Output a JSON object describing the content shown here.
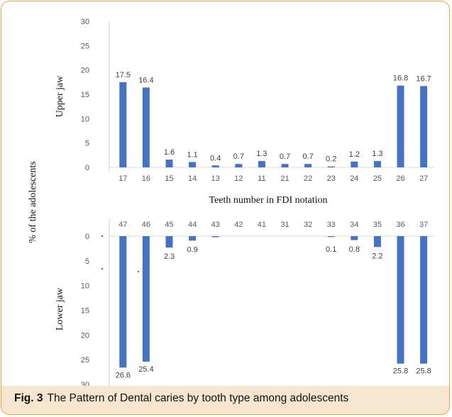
{
  "figure": {
    "label": "Fig. 3",
    "caption": "The Pattern of Dental caries by tooth type among adolescents"
  },
  "chart_data": [
    {
      "type": "bar",
      "title": "",
      "ylabel": "Upper jaw",
      "xlabel": "Teeth number in FDI notation",
      "shared_ylabel": "% of the adolescents",
      "categories": [
        "17",
        "16",
        "15",
        "14",
        "13",
        "12",
        "11",
        "21",
        "22",
        "23",
        "24",
        "25",
        "26",
        "27"
      ],
      "values": [
        17.5,
        16.4,
        1.6,
        1.1,
        0.4,
        0.7,
        1.3,
        0.7,
        0.7,
        0.2,
        1.2,
        1.3,
        16.8,
        16.7
      ],
      "yticks": [
        "0",
        "5",
        "10",
        "15",
        "20",
        "25",
        "30"
      ],
      "ylim": [
        0,
        30
      ],
      "grid": false,
      "color": "#4472c4"
    },
    {
      "type": "bar",
      "title": "",
      "ylabel": "Lower jaw",
      "orientation": "inverted-y",
      "categories": [
        "47",
        "46",
        "45",
        "44",
        "43",
        "42",
        "41",
        "31",
        "32",
        "33",
        "34",
        "35",
        "36",
        "37"
      ],
      "values": [
        26.6,
        25.4,
        2.3,
        0.9,
        0.2,
        0,
        0,
        0,
        0,
        0.1,
        0.8,
        2.2,
        25.8,
        25.8
      ],
      "value_labels": [
        "26.6",
        "25.4",
        "2.3",
        "0.9",
        "",
        "",
        "",
        "",
        "",
        "0.1",
        "0.8",
        "2.2",
        "25.8",
        "25.8"
      ],
      "yticks": [
        "0",
        "5",
        "10",
        "15",
        "20",
        "25",
        "30"
      ],
      "ylim": [
        0,
        30
      ],
      "grid": false,
      "color": "#4472c4"
    }
  ]
}
